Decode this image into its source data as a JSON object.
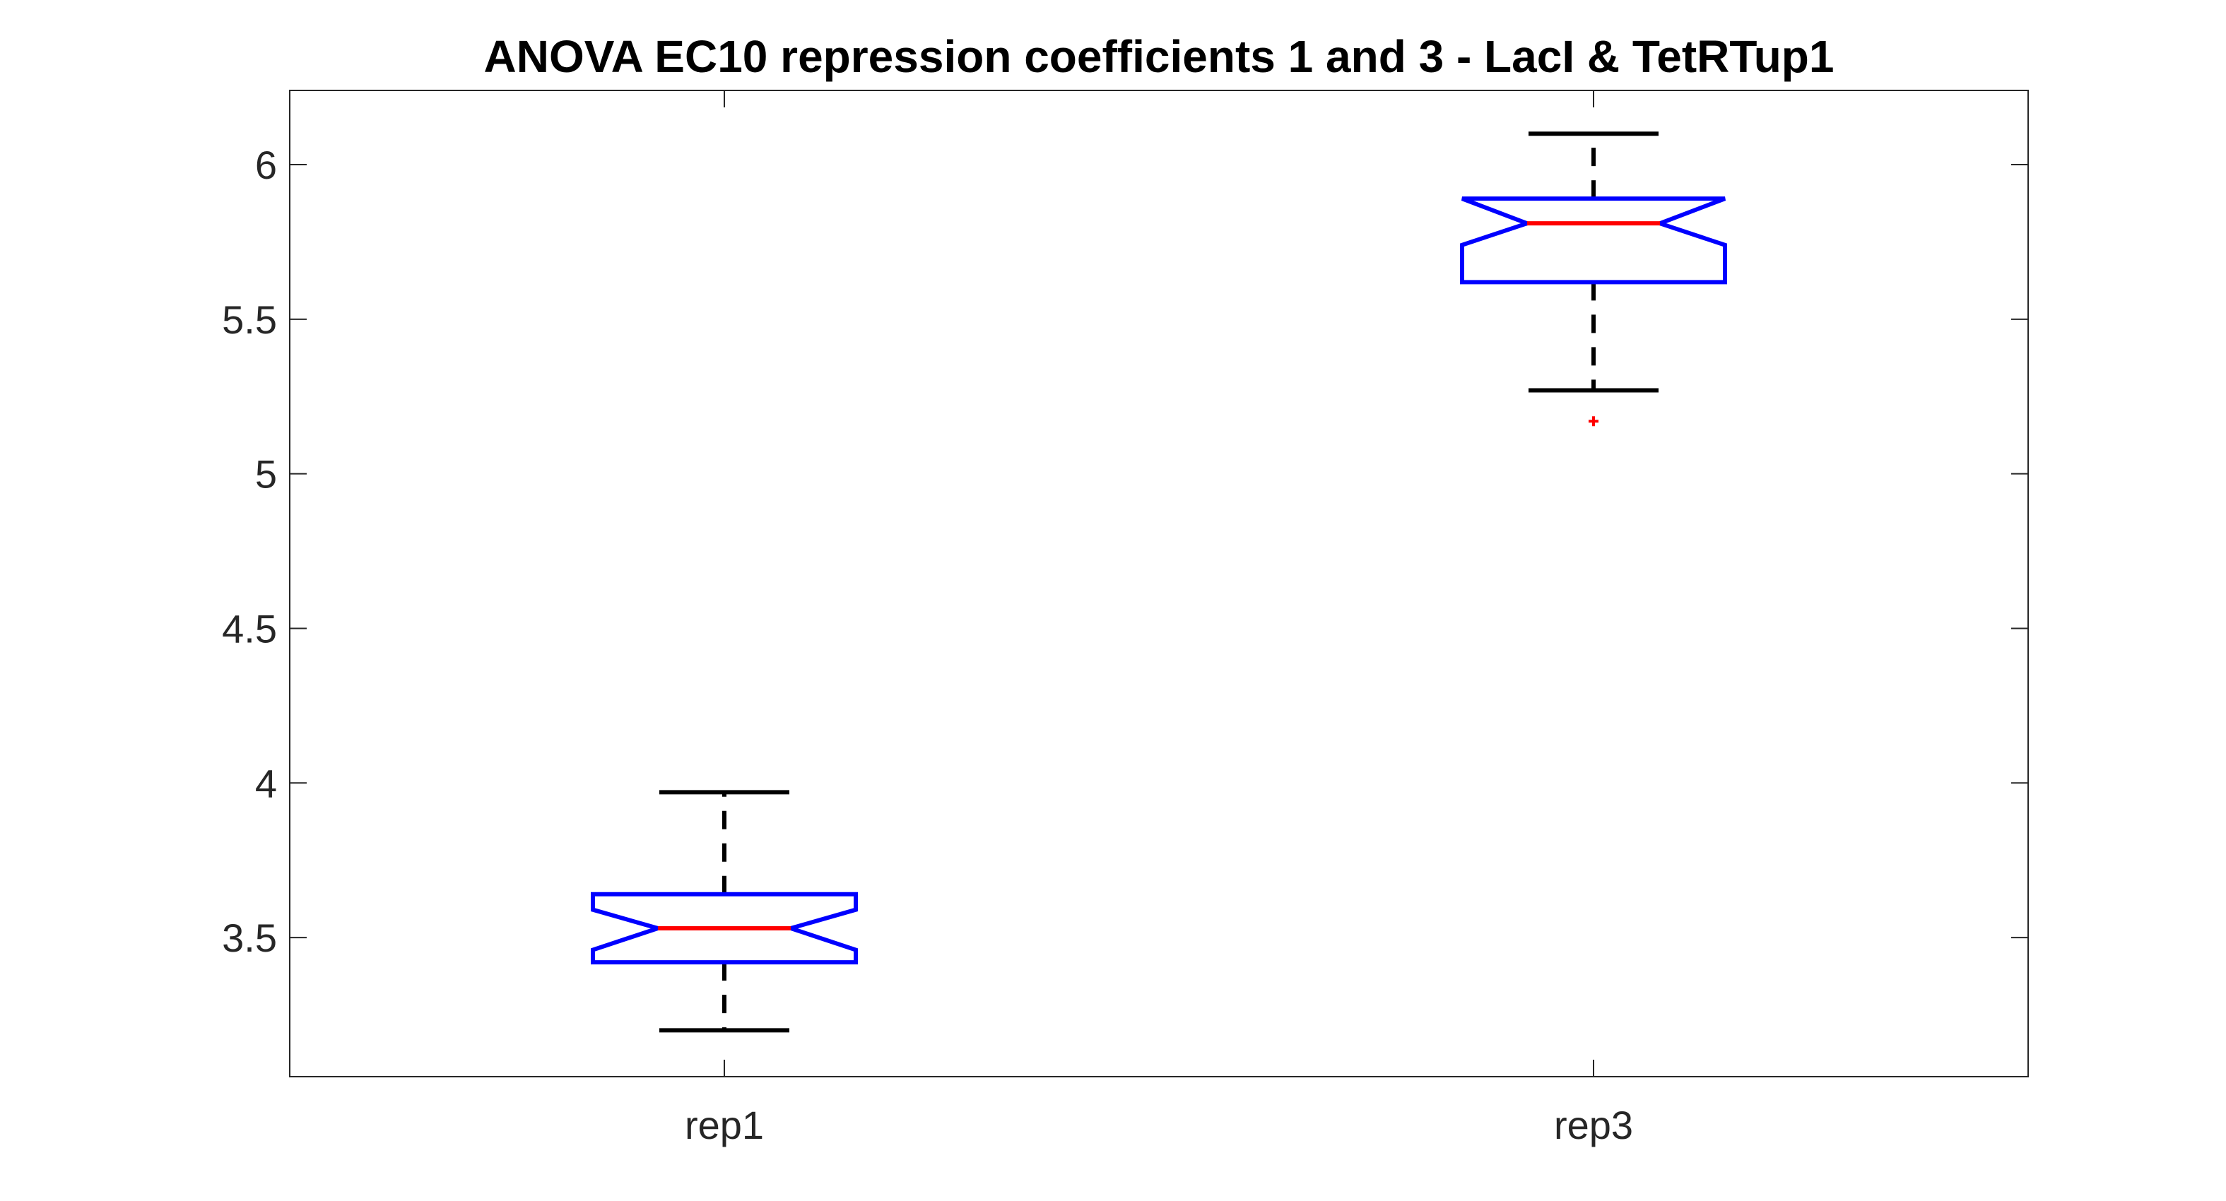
{
  "chart_data": {
    "type": "boxplot",
    "title": "ANOVA EC10 repression coefficients 1 and 3 - LacI & TetRTup1",
    "xlabel": "",
    "ylabel": "",
    "ylim": [
      3.05,
      6.24
    ],
    "yticks": [
      3.5,
      4,
      4.5,
      5,
      5.5,
      6
    ],
    "ytick_labels": [
      "3.5",
      "4",
      "4.5",
      "5",
      "5.5",
      "6"
    ],
    "categories": [
      "rep1",
      "rep3"
    ],
    "notched": true,
    "grid": false,
    "legend": "none",
    "boxes": [
      {
        "category": "rep1",
        "whisker_low": 3.2,
        "q1": 3.42,
        "median": 3.53,
        "q3": 3.64,
        "whisker_high": 3.97,
        "notch_low": 3.46,
        "notch_high": 3.59,
        "outliers": []
      },
      {
        "category": "rep3",
        "whisker_low": 5.27,
        "q1": 5.62,
        "median": 5.81,
        "q3": 5.89,
        "whisker_high": 6.1,
        "notch_low": 5.74,
        "notch_high": 5.89,
        "outliers": [
          5.17
        ]
      }
    ],
    "colors": {
      "box": "#0000ff",
      "median": "#ff0000",
      "whisker": "#000000",
      "outlier": "#ff0000",
      "axes": "#262626"
    }
  }
}
